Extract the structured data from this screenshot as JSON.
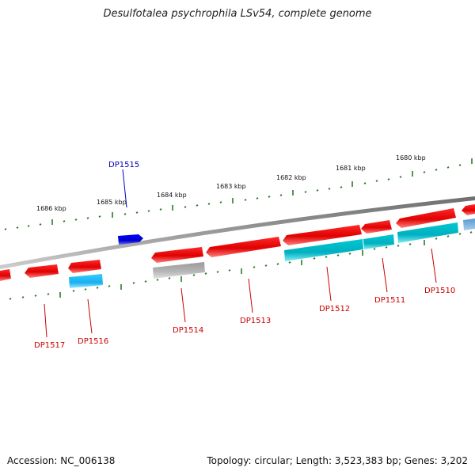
{
  "title": "Desulfotalea psychrophila LSv54, complete genome",
  "footer": {
    "accession": "Accession: NC_006138",
    "summary": "Topology: circular; Length: 3,523,383 bp; Genes: 3,202"
  },
  "colors": {
    "backbone": "#808080",
    "forward_gene": "#ee0000",
    "reverse_gene_cyan": "#00bfcc",
    "reverse_gene_light": "#33ccff",
    "pseudo_gene": "#b0b0b0",
    "highlight_gene": "#0000ee",
    "partial_gene": "#4a8fc8",
    "major_tick": "#2a7a2a",
    "minor_tick": "#2a7a2a",
    "label_red": "#cc0000",
    "label_blue": "#0000bb"
  },
  "scale_labels": [
    "1686 kbp",
    "1685 kbp",
    "1684 kbp",
    "1683 kbp",
    "1682 kbp",
    "1681 kbp",
    "1680 kbp"
  ],
  "gene_labels": {
    "DP1515": "DP1515",
    "DP1517": "DP1517",
    "DP1516": "DP1516",
    "DP1514": "DP1514",
    "DP1513": "DP1513",
    "DP1512": "DP1512",
    "DP1511": "DP1511",
    "DP1510": "DP1510"
  }
}
